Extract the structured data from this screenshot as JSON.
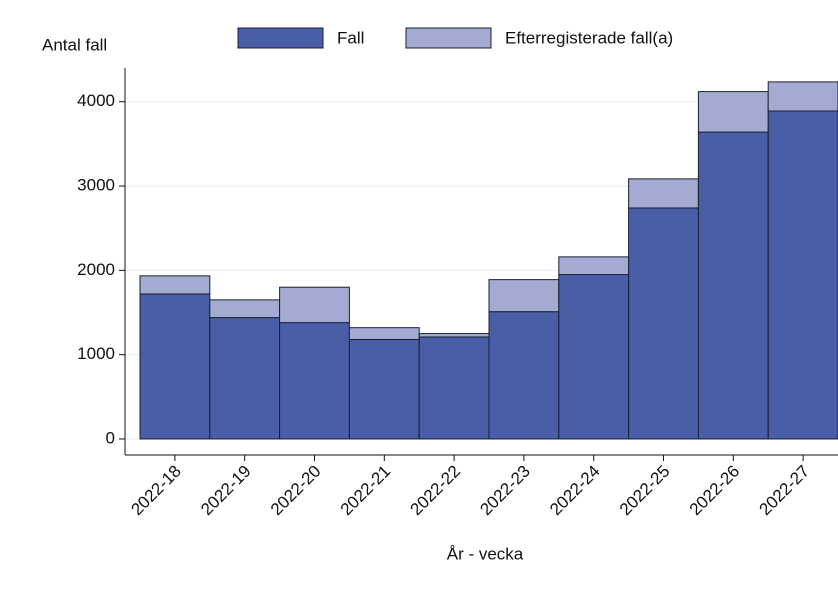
{
  "chart_data": {
    "type": "stacked_bar",
    "y_axis_label": "Antal fall",
    "x_axis_label": "År - vecka",
    "categories": [
      "2022-18",
      "2022-19",
      "2022-20",
      "2022-21",
      "2022-22",
      "2022-23",
      "2022-24",
      "2022-25",
      "2022-26",
      "2022-27"
    ],
    "series": [
      {
        "name": "Fall",
        "color": "#4a5ea8",
        "values": [
          1720,
          1440,
          1380,
          1180,
          1210,
          1510,
          1950,
          2740,
          3640,
          3890
        ]
      },
      {
        "name": "Efterregisterade fall(a)",
        "color": "#a3abd3",
        "values": [
          215,
          210,
          420,
          140,
          40,
          380,
          210,
          345,
          480,
          345
        ]
      }
    ],
    "ylim": [
      -190,
      4400
    ],
    "yticks": [
      0,
      1000,
      2000,
      3000,
      4000
    ],
    "grid": true
  }
}
